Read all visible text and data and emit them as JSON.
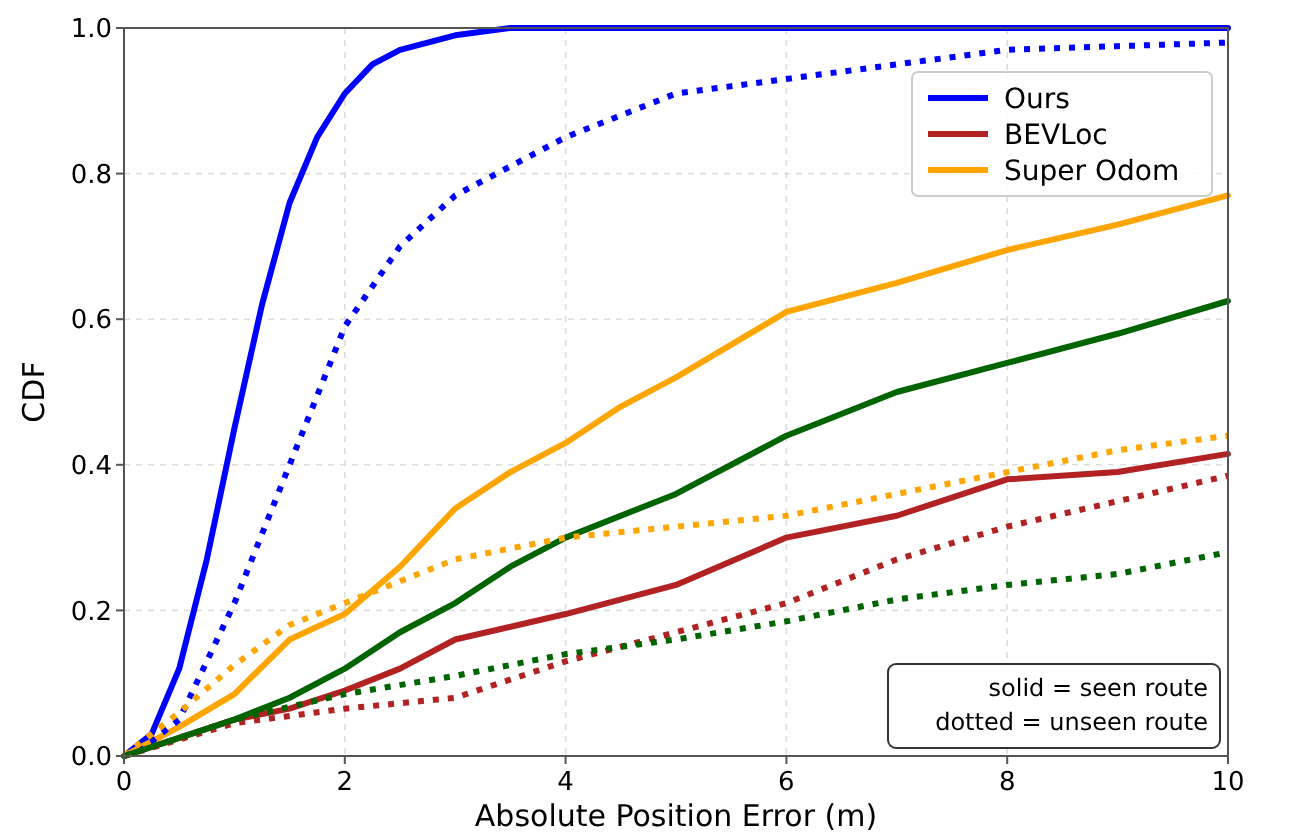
{
  "chart_data": {
    "type": "line",
    "xlabel": "Absolute Position Error (m)",
    "ylabel": "CDF",
    "xlim": [
      0,
      10
    ],
    "ylim": [
      0,
      1
    ],
    "xticks": [
      0,
      2,
      4,
      6,
      8,
      10
    ],
    "yticks": [
      {
        "value": 0,
        "label": "0.0"
      },
      {
        "value": 0.2,
        "label": "0.2"
      },
      {
        "value": 0.4,
        "label": "0.4"
      },
      {
        "value": 0.6,
        "label": "0.6"
      },
      {
        "value": 0.8,
        "label": "0.8"
      },
      {
        "value": 1,
        "label": "1.0"
      }
    ],
    "grid": true,
    "legend": "top right",
    "annotations": [
      "solid = seen route",
      "dotted = unseen route"
    ],
    "series": [
      {
        "name": "Ours",
        "color": "#0000ff",
        "line_style": "solid",
        "x": [
          0,
          0.25,
          0.5,
          0.75,
          1,
          1.25,
          1.5,
          1.75,
          2,
          2.25,
          2.5,
          3,
          3.5,
          10
        ],
        "values": [
          0,
          0.03,
          0.12,
          0.27,
          0.45,
          0.62,
          0.76,
          0.85,
          0.91,
          0.95,
          0.97,
          0.99,
          1,
          1
        ]
      },
      {
        "name": "BEVLoc",
        "color": "#b22222",
        "line_style": "solid",
        "x": [
          0,
          0.5,
          1,
          1.5,
          2,
          2.5,
          3,
          4,
          5,
          6,
          7,
          8,
          9,
          10
        ],
        "values": [
          0,
          0.025,
          0.05,
          0.065,
          0.09,
          0.12,
          0.16,
          0.195,
          0.235,
          0.3,
          0.33,
          0.38,
          0.39,
          0.415
        ]
      },
      {
        "name": "Super Odom",
        "color": "#ffa500",
        "line_style": "solid",
        "x": [
          0,
          0.5,
          1,
          1.5,
          2,
          2.5,
          3,
          3.5,
          4,
          4.5,
          5,
          6,
          7,
          8,
          9,
          10
        ],
        "values": [
          0,
          0.04,
          0.085,
          0.16,
          0.195,
          0.26,
          0.34,
          0.39,
          0.43,
          0.48,
          0.52,
          0.61,
          0.65,
          0.695,
          0.73,
          0.77
        ]
      },
      {
        "color": "#006400",
        "line_style": "solid",
        "x": [
          0,
          0.5,
          1,
          1.5,
          2,
          2.5,
          3,
          3.5,
          4,
          5,
          6,
          7,
          8,
          9,
          10
        ],
        "values": [
          0,
          0.025,
          0.05,
          0.08,
          0.12,
          0.17,
          0.21,
          0.26,
          0.3,
          0.36,
          0.44,
          0.5,
          0.54,
          0.58,
          0.625
        ]
      },
      {
        "color": "#0000ff",
        "line_style": "dotted",
        "x": [
          0,
          0.25,
          0.5,
          1,
          1.5,
          2,
          2.5,
          3,
          4,
          5,
          6,
          7,
          8,
          9,
          10
        ],
        "values": [
          0,
          0.02,
          0.05,
          0.21,
          0.4,
          0.59,
          0.7,
          0.77,
          0.85,
          0.91,
          0.93,
          0.95,
          0.97,
          0.975,
          0.98
        ]
      },
      {
        "color": "#b22222",
        "line_style": "dotted",
        "x": [
          0,
          1,
          2,
          3,
          4,
          5,
          6,
          7,
          8,
          9,
          10
        ],
        "values": [
          0,
          0.045,
          0.065,
          0.08,
          0.13,
          0.17,
          0.21,
          0.27,
          0.315,
          0.35,
          0.385
        ]
      },
      {
        "color": "#ffa500",
        "line_style": "dotted",
        "x": [
          0,
          0.5,
          1,
          1.5,
          2,
          3,
          4,
          5,
          6,
          7,
          8,
          9,
          10
        ],
        "values": [
          0,
          0.06,
          0.125,
          0.18,
          0.21,
          0.27,
          0.3,
          0.315,
          0.33,
          0.36,
          0.39,
          0.42,
          0.44
        ]
      },
      {
        "color": "#006400",
        "line_style": "dotted",
        "x": [
          0,
          1,
          2,
          3,
          4,
          5,
          6,
          7,
          8,
          9,
          10
        ],
        "values": [
          0,
          0.05,
          0.085,
          0.11,
          0.14,
          0.16,
          0.185,
          0.215,
          0.235,
          0.25,
          0.28
        ]
      }
    ]
  }
}
